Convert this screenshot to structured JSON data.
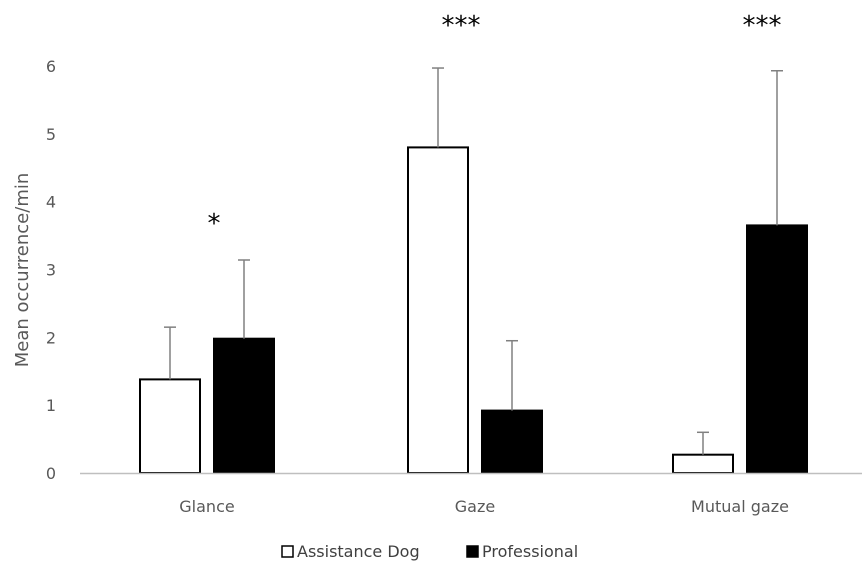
{
  "chart_data": {
    "type": "bar",
    "title": "",
    "xlabel": "",
    "ylabel": "Mean occurrence/min",
    "ylim": [
      0,
      6
    ],
    "yticks": [
      0,
      1,
      2,
      3,
      4,
      5,
      6
    ],
    "grid": false,
    "legend_position": "bottom",
    "categories": [
      "Glance",
      "Gaze",
      "Mutual gaze"
    ],
    "series": [
      {
        "name": "Assistance Dog",
        "values": [
          1.38,
          4.8,
          0.27
        ],
        "error_upper": [
          0.77,
          1.17,
          0.33
        ],
        "fill": "#ffffff",
        "stroke": "#000000"
      },
      {
        "name": "Professional",
        "values": [
          1.98,
          0.92,
          3.65
        ],
        "error_upper": [
          1.16,
          1.03,
          2.28
        ],
        "fill": "#000000",
        "stroke": "#000000"
      }
    ],
    "significance": [
      "*",
      "***",
      "***"
    ],
    "colors": {
      "axis": "#bfbfbf",
      "text": "#595959",
      "error_bar": "#808080"
    }
  }
}
